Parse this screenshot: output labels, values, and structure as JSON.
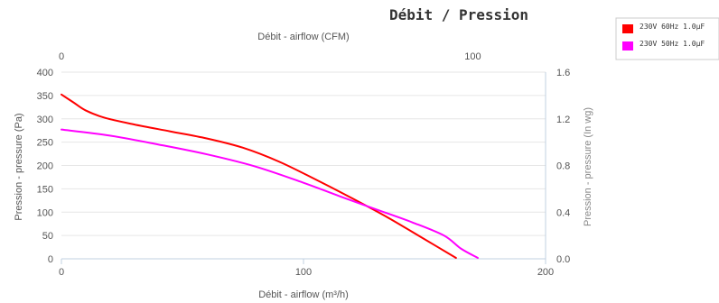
{
  "chart_data": {
    "type": "line",
    "title": "Débit / Pression",
    "xlabel": "Débit - airflow (m³/h)",
    "x2label": "Débit - airflow (CFM)",
    "ylabel": "Pression - pressure (Pa)",
    "y2label": "Pression - pressure (In wg)",
    "xlim": [
      0,
      200
    ],
    "ylim": [
      0,
      400
    ],
    "x2lim": [
      0,
      117.7
    ],
    "y2lim": [
      0,
      1.6
    ],
    "x_ticks": [
      "0",
      "100",
      "200"
    ],
    "x2_ticks": [
      "0",
      "100"
    ],
    "y_ticks": [
      "0",
      "50",
      "100",
      "150",
      "200",
      "250",
      "300",
      "350",
      "400"
    ],
    "y2_ticks": [
      "0.0",
      "0.4",
      "0.8",
      "1.2",
      "1.6"
    ],
    "grid": "horizontal",
    "legend_placement": "top-right",
    "series": [
      {
        "name": "230V 60Hz 1.0µF",
        "color": "#ff0000",
        "points": [
          [
            0,
            352
          ],
          [
            5,
            335
          ],
          [
            10,
            318
          ],
          [
            18,
            302
          ],
          [
            30,
            288
          ],
          [
            45,
            273
          ],
          [
            60,
            258
          ],
          [
            75,
            238
          ],
          [
            90,
            208
          ],
          [
            105,
            170
          ],
          [
            120,
            130
          ],
          [
            135,
            88
          ],
          [
            150,
            42
          ],
          [
            163,
            2
          ]
        ]
      },
      {
        "name": "230V 50Hz 1.0µF",
        "color": "#ff00ff",
        "points": [
          [
            0,
            277
          ],
          [
            20,
            264
          ],
          [
            40,
            245
          ],
          [
            60,
            224
          ],
          [
            80,
            198
          ],
          [
            100,
            163
          ],
          [
            115,
            134
          ],
          [
            130,
            106
          ],
          [
            145,
            78
          ],
          [
            158,
            50
          ],
          [
            165,
            22
          ],
          [
            172,
            2
          ]
        ]
      }
    ]
  }
}
